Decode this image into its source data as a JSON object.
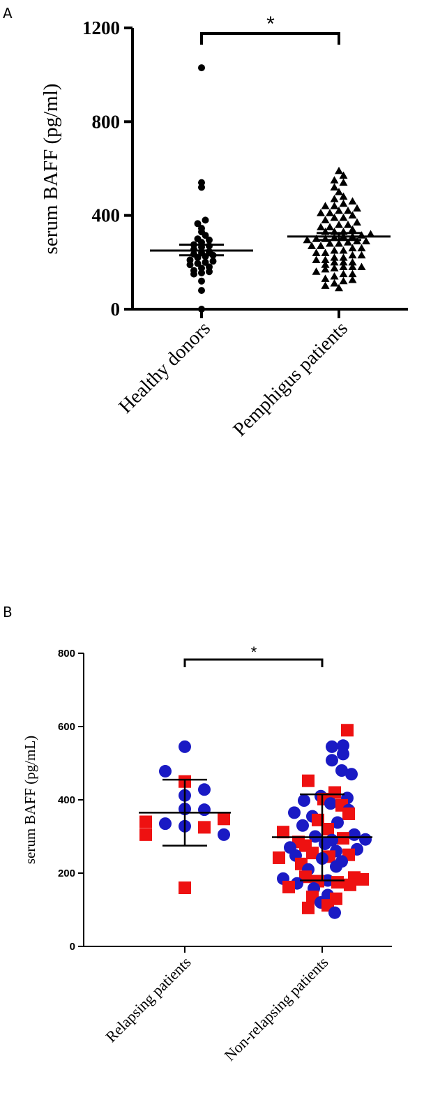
{
  "chart_data": [
    {
      "panel_label": "A",
      "type": "scatter",
      "ylabel": "serum BAFF (pg/ml)",
      "ylim": [
        0,
        1200
      ],
      "yticks": [
        "0",
        "400",
        "800",
        "1200"
      ],
      "categories": [
        "Healthy donors",
        "Pemphigus patients"
      ],
      "significance": "*",
      "series": [
        {
          "category": "Healthy donors",
          "marker": "circle",
          "color": "#000000",
          "mean": 250,
          "sem_low": 230,
          "sem_high": 275,
          "values": [
            1030,
            540,
            520,
            380,
            365,
            345,
            330,
            315,
            300,
            295,
            285,
            275,
            270,
            265,
            255,
            245,
            240,
            235,
            230,
            225,
            220,
            210,
            205,
            200,
            195,
            190,
            180,
            175,
            165,
            160,
            155,
            150,
            120,
            80,
            0
          ]
        },
        {
          "category": "Pemphigus patients",
          "marker": "triangle",
          "color": "#000000",
          "mean": 310,
          "sem_low": 295,
          "sem_high": 325,
          "values": [
            590,
            570,
            550,
            540,
            520,
            500,
            480,
            470,
            460,
            450,
            440,
            430,
            420,
            410,
            400,
            390,
            380,
            370,
            360,
            350,
            340,
            330,
            320,
            315,
            310,
            305,
            300,
            295,
            290,
            285,
            280,
            270,
            260,
            250,
            240,
            230,
            220,
            210,
            200,
            190,
            180,
            170,
            160,
            150,
            140,
            130,
            120,
            110,
            100,
            90,
            420,
            360,
            330,
            300,
            260,
            230,
            200,
            175,
            150,
            125,
            390,
            350,
            280,
            240,
            210,
            180,
            330,
            310,
            290,
            270,
            250,
            180,
            200,
            220,
            440,
            410
          ]
        }
      ]
    },
    {
      "panel_label": "B",
      "type": "scatter",
      "ylabel": "serum BAFF (pg/mL)",
      "ylim": [
        0,
        800
      ],
      "yticks": [
        "0",
        "200",
        "400",
        "600",
        "800"
      ],
      "categories": [
        "Relapsing patients",
        "Non-relapsing patients"
      ],
      "significance": "*",
      "colors": {
        "circle": "#1a1ac4",
        "square": "#ee1111"
      },
      "groups": [
        {
          "category": "Relapsing patients",
          "mean": 365,
          "sd_low": 275,
          "sd_high": 455,
          "points": [
            {
              "v": 545,
              "m": "circle",
              "dx": 0
            },
            {
              "v": 478,
              "m": "circle",
              "dx": -28
            },
            {
              "v": 450,
              "m": "square",
              "dx": 0
            },
            {
              "v": 428,
              "m": "circle",
              "dx": 28
            },
            {
              "v": 412,
              "m": "circle",
              "dx": 0
            },
            {
              "v": 375,
              "m": "circle",
              "dx": 0
            },
            {
              "v": 373,
              "m": "circle",
              "dx": 28
            },
            {
              "v": 348,
              "m": "square",
              "dx": 56
            },
            {
              "v": 340,
              "m": "square",
              "dx": -56
            },
            {
              "v": 335,
              "m": "circle",
              "dx": -28
            },
            {
              "v": 328,
              "m": "circle",
              "dx": 0
            },
            {
              "v": 325,
              "m": "square",
              "dx": 28
            },
            {
              "v": 305,
              "m": "square",
              "dx": -56
            },
            {
              "v": 305,
              "m": "circle",
              "dx": 56
            },
            {
              "v": 160,
              "m": "square",
              "dx": 0
            }
          ]
        },
        {
          "category": "Non-relapsing patients",
          "mean": 298,
          "sd_low": 180,
          "sd_high": 415,
          "points": [
            {
              "v": 590,
              "m": "square",
              "dx": 36
            },
            {
              "v": 548,
              "m": "circle",
              "dx": 30
            },
            {
              "v": 545,
              "m": "circle",
              "dx": 14
            },
            {
              "v": 525,
              "m": "circle",
              "dx": 30
            },
            {
              "v": 508,
              "m": "circle",
              "dx": 14
            },
            {
              "v": 480,
              "m": "circle",
              "dx": 28
            },
            {
              "v": 470,
              "m": "circle",
              "dx": 42
            },
            {
              "v": 452,
              "m": "square",
              "dx": -20
            },
            {
              "v": 420,
              "m": "square",
              "dx": 18
            },
            {
              "v": 410,
              "m": "circle",
              "dx": -2
            },
            {
              "v": 405,
              "m": "circle",
              "dx": 36
            },
            {
              "v": 402,
              "m": "square",
              "dx": 2
            },
            {
              "v": 398,
              "m": "circle",
              "dx": -26
            },
            {
              "v": 390,
              "m": "circle",
              "dx": 12
            },
            {
              "v": 385,
              "m": "square",
              "dx": 28
            },
            {
              "v": 372,
              "m": "circle",
              "dx": 38
            },
            {
              "v": 365,
              "m": "circle",
              "dx": -40
            },
            {
              "v": 362,
              "m": "square",
              "dx": 38
            },
            {
              "v": 355,
              "m": "circle",
              "dx": -14
            },
            {
              "v": 345,
              "m": "square",
              "dx": -6
            },
            {
              "v": 338,
              "m": "circle",
              "dx": 22
            },
            {
              "v": 330,
              "m": "circle",
              "dx": -28
            },
            {
              "v": 320,
              "m": "square",
              "dx": 8
            },
            {
              "v": 312,
              "m": "square",
              "dx": -56
            },
            {
              "v": 305,
              "m": "circle",
              "dx": 46
            },
            {
              "v": 300,
              "m": "circle",
              "dx": -10
            },
            {
              "v": 295,
              "m": "square",
              "dx": 30
            },
            {
              "v": 292,
              "m": "circle",
              "dx": 62
            },
            {
              "v": 290,
              "m": "circle",
              "dx": 14
            },
            {
              "v": 285,
              "m": "square",
              "dx": -34
            },
            {
              "v": 280,
              "m": "circle",
              "dx": 4
            },
            {
              "v": 275,
              "m": "square",
              "dx": -24
            },
            {
              "v": 270,
              "m": "circle",
              "dx": -46
            },
            {
              "v": 265,
              "m": "circle",
              "dx": 50
            },
            {
              "v": 260,
              "m": "circle",
              "dx": 20
            },
            {
              "v": 255,
              "m": "square",
              "dx": -14
            },
            {
              "v": 250,
              "m": "square",
              "dx": 38
            },
            {
              "v": 248,
              "m": "circle",
              "dx": -38
            },
            {
              "v": 245,
              "m": "square",
              "dx": 10
            },
            {
              "v": 242,
              "m": "square",
              "dx": -62
            },
            {
              "v": 240,
              "m": "circle",
              "dx": 0
            },
            {
              "v": 232,
              "m": "circle",
              "dx": 28
            },
            {
              "v": 225,
              "m": "square",
              "dx": -30
            },
            {
              "v": 218,
              "m": "circle",
              "dx": 20
            },
            {
              "v": 210,
              "m": "circle",
              "dx": -20
            },
            {
              "v": 190,
              "m": "square",
              "dx": -24
            },
            {
              "v": 188,
              "m": "square",
              "dx": 46
            },
            {
              "v": 185,
              "m": "circle",
              "dx": -56
            },
            {
              "v": 183,
              "m": "square",
              "dx": 58
            },
            {
              "v": 180,
              "m": "circle",
              "dx": 8
            },
            {
              "v": 178,
              "m": "square",
              "dx": -6
            },
            {
              "v": 175,
              "m": "square",
              "dx": 22
            },
            {
              "v": 172,
              "m": "circle",
              "dx": -36
            },
            {
              "v": 168,
              "m": "square",
              "dx": 40
            },
            {
              "v": 162,
              "m": "square",
              "dx": -48
            },
            {
              "v": 158,
              "m": "circle",
              "dx": -12
            },
            {
              "v": 140,
              "m": "circle",
              "dx": 8
            },
            {
              "v": 135,
              "m": "square",
              "dx": -14
            },
            {
              "v": 130,
              "m": "square",
              "dx": 20
            },
            {
              "v": 120,
              "m": "circle",
              "dx": -2
            },
            {
              "v": 112,
              "m": "square",
              "dx": 8
            },
            {
              "v": 105,
              "m": "square",
              "dx": -20
            },
            {
              "v": 92,
              "m": "circle",
              "dx": 18
            }
          ]
        }
      ]
    }
  ]
}
